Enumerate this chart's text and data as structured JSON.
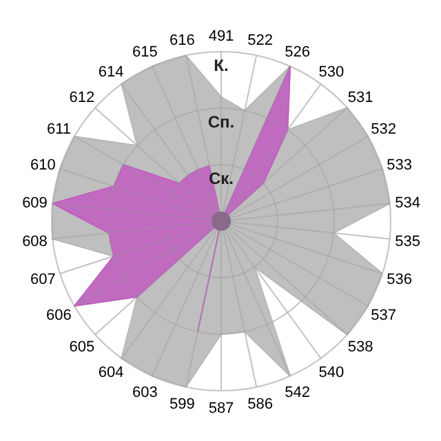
{
  "chart_data": {
    "type": "radar",
    "categories": [
      "491",
      "522",
      "526",
      "530",
      "531",
      "532",
      "533",
      "534",
      "535",
      "536",
      "537",
      "538",
      "540",
      "542",
      "586",
      "587",
      "599",
      "603",
      "604",
      "605",
      "606",
      "607",
      "608",
      "609",
      "610",
      "611",
      "612",
      "614",
      "615",
      "616"
    ],
    "ylim": [
      0,
      3
    ],
    "yticks": [
      {
        "value": 1,
        "label": "Ск."
      },
      {
        "value": 2,
        "label": "Сп."
      },
      {
        "value": 3,
        "label": "К."
      }
    ],
    "grid": true,
    "series": [
      {
        "color": "#b8b8b8",
        "values": [
          2.2,
          2,
          3,
          2,
          3,
          3,
          3,
          3,
          2,
          3,
          3,
          3,
          1,
          3,
          2,
          2,
          3,
          3,
          3,
          2,
          3,
          2,
          3,
          3,
          3,
          3,
          2,
          3,
          3,
          3
        ]
      },
      {
        "color": "#c060c0",
        "values": [
          0,
          0,
          3,
          2,
          1,
          0,
          0,
          0,
          0,
          0,
          0,
          0,
          0,
          0,
          0,
          0,
          2,
          0,
          0,
          2,
          3,
          2,
          2,
          3,
          2,
          2,
          1,
          1,
          1,
          1
        ]
      }
    ]
  }
}
